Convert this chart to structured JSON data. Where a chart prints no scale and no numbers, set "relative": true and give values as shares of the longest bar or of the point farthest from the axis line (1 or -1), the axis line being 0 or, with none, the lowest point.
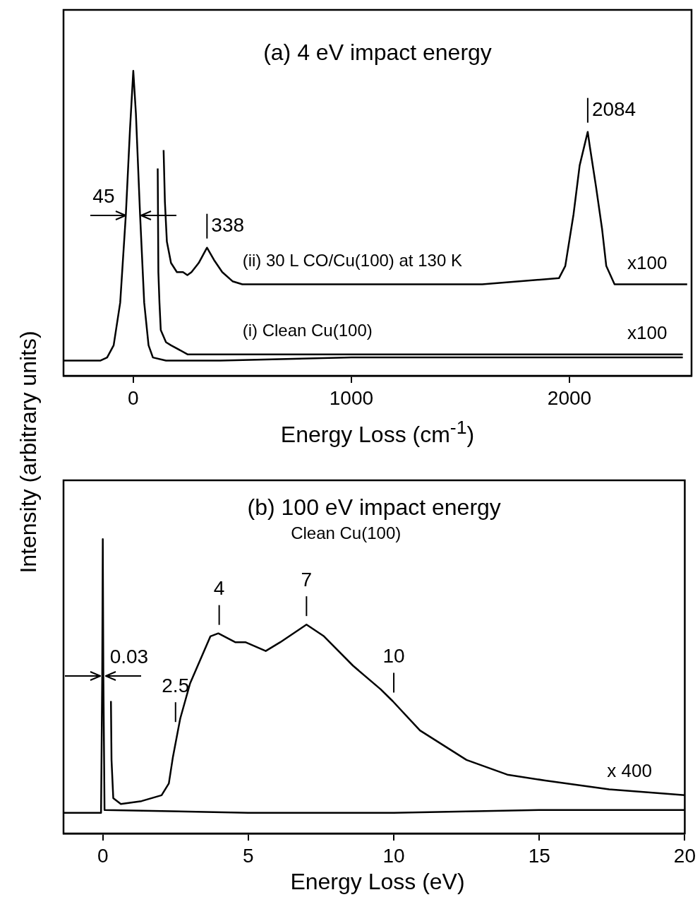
{
  "chart_data": [
    {
      "type": "line",
      "title": "(a) 4 eV impact energy",
      "xlabel": "Energy Loss (cm$^{-1}$)",
      "ylabel": "Intensity (arbitrary units)",
      "relative": true,
      "xlim": [
        -320,
        2560
      ],
      "xticks": [
        0,
        1000,
        2000
      ],
      "grid": false,
      "legend": false,
      "marker": "none",
      "line_style": "solid",
      "series": [
        {
          "color": "#000000",
          "x": [
            -320,
            -150,
            -120,
            -90,
            -60,
            -34,
            -15,
            0,
            12,
            31,
            50,
            70,
            90,
            150,
            400,
            1000,
            2000,
            2520
          ],
          "values": [
            0.05,
            0.05,
            0.06,
            0.1,
            0.24,
            0.53,
            0.81,
            1,
            0.86,
            0.53,
            0.24,
            0.1,
            0.06,
            0.05,
            0.05,
            0.06,
            0.06,
            0.06
          ]
        },
        {
          "name": "(i) Clean Cu(100)",
          "color": "#000000",
          "x": [
            112,
            115,
            120,
            126,
            150,
            173,
            250,
            306,
            500,
            1000,
            1500,
            2000,
            2520
          ],
          "values": [
            0.68,
            0.34,
            0.24,
            0.15,
            0.11,
            0.1,
            0.07,
            0.07,
            0.07,
            0.07,
            0.07,
            0.07,
            0.07
          ]
        },
        {
          "name": "(ii) 30 L CO/Cu(100) at 130 K",
          "color": "#000000",
          "x": [
            139,
            145,
            154,
            173,
            200,
            228,
            248,
            267,
            300,
            338,
            370,
            408,
            455,
            500,
            800,
            1200,
            1600,
            1952,
            1981,
            2019,
            2047,
            2084,
            2094,
            2122,
            2150,
            2169,
            2207,
            2300,
            2540
          ],
          "values": [
            0.74,
            0.57,
            0.44,
            0.37,
            0.34,
            0.34,
            0.33,
            0.34,
            0.37,
            0.42,
            0.38,
            0.34,
            0.31,
            0.3,
            0.3,
            0.3,
            0.3,
            0.32,
            0.36,
            0.53,
            0.69,
            0.8,
            0.75,
            0.62,
            0.48,
            0.36,
            0.3,
            0.3,
            0.3
          ]
        }
      ],
      "annotations": [
        "45",
        {
          "text": "338",
          "x": 338,
          "y": 0.42
        },
        {
          "text": "2084",
          "x": 2084,
          "y": 0.8
        },
        {
          "text": "x100",
          "x": 2357,
          "y": 0.3
        },
        {
          "text": "x100",
          "x": 2357,
          "y": 0.07
        }
      ]
    },
    {
      "type": "line",
      "title": "(b) 100 eV impact energy",
      "subtitle": "Clean Cu(100)",
      "xlabel": "Energy Loss (eV)",
      "relative": true,
      "xlim": [
        -1.35,
        20
      ],
      "xticks": [
        0,
        5,
        10,
        15,
        20
      ],
      "grid": false,
      "legend": false,
      "marker": "none",
      "line_style": "solid",
      "series": [
        {
          "color": "#000000",
          "x": [
            -1.35,
            -0.06,
            -0.02,
            0,
            0.02,
            0.06,
            5,
            10,
            15,
            20
          ],
          "values": [
            0.07,
            0.07,
            0.53,
            1,
            0.53,
            0.08,
            0.07,
            0.07,
            0.08,
            0.08
          ]
        },
        {
          "color": "#000000",
          "x": [
            0.28,
            0.3,
            0.36,
            0.62,
            1.33,
            2.02,
            2.27,
            2.41,
            2.66,
            3.0,
            3.7,
            3.97,
            4.55,
            4.9,
            5.6,
            6.1,
            7.0,
            7.6,
            8.6,
            9.55,
            9.96,
            10.9,
            12.5,
            13.9,
            15.2,
            17.4,
            20
          ],
          "values": [
            0.45,
            0.25,
            0.12,
            0.1,
            0.11,
            0.13,
            0.17,
            0.26,
            0.39,
            0.51,
            0.67,
            0.68,
            0.65,
            0.65,
            0.62,
            0.65,
            0.71,
            0.67,
            0.57,
            0.49,
            0.45,
            0.35,
            0.25,
            0.2,
            0.18,
            0.15,
            0.13
          ]
        }
      ],
      "annotations": [
        "0.03",
        {
          "text": "2.5",
          "x": 2.5,
          "y": 0.35
        },
        {
          "text": "4",
          "x": 4,
          "y": 0.68
        },
        {
          "text": "7",
          "x": 7,
          "y": 0.71
        },
        {
          "text": "10",
          "x": 10,
          "y": 0.45
        },
        {
          "text": "x 400",
          "x": 18.1,
          "y": 0.14
        }
      ]
    }
  ]
}
